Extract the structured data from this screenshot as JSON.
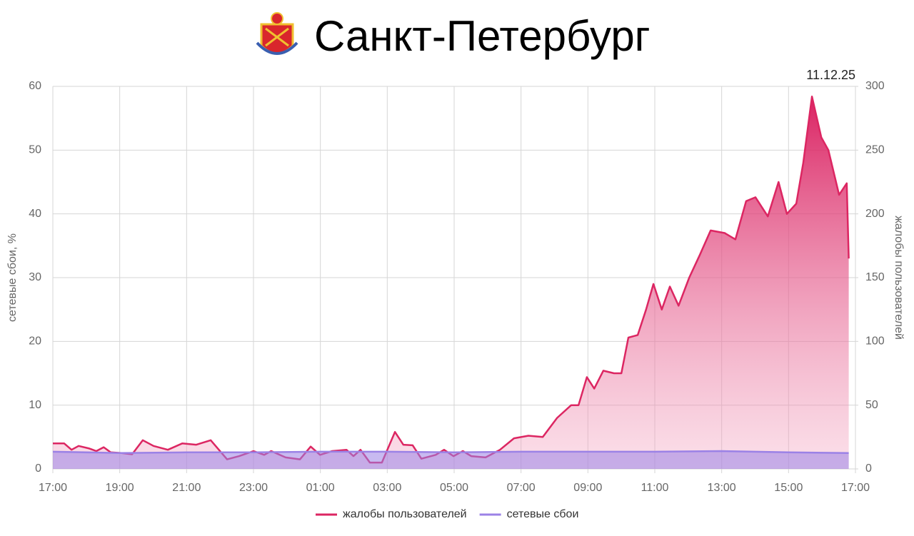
{
  "chart_data": {
    "type": "line",
    "title": "Санкт-Петербург",
    "date": "11.12.25",
    "ylabel": "сетевые сбои, %",
    "y2label": "жалобы пользователей",
    "xlim": [
      0,
      24
    ],
    "xticks": [
      {
        "value": 0,
        "label": "17:00"
      },
      {
        "value": 2,
        "label": "19:00"
      },
      {
        "value": 4,
        "label": "21:00"
      },
      {
        "value": 6,
        "label": "23:00"
      },
      {
        "value": 8,
        "label": "01:00"
      },
      {
        "value": 10,
        "label": "03:00"
      },
      {
        "value": 12,
        "label": "05:00"
      },
      {
        "value": 14,
        "label": "07:00"
      },
      {
        "value": 16,
        "label": "09:00"
      },
      {
        "value": 18,
        "label": "11:00"
      },
      {
        "value": 20,
        "label": "13:00"
      },
      {
        "value": 22,
        "label": "15:00"
      },
      {
        "value": 24,
        "label": "17:00"
      }
    ],
    "ylim": [
      0,
      60
    ],
    "yticks": [
      0,
      10,
      20,
      30,
      40,
      50,
      60
    ],
    "y2lim": [
      0,
      300
    ],
    "y2ticks": [
      0,
      50,
      100,
      150,
      200,
      250,
      300
    ],
    "grid": true,
    "series": [
      {
        "name": "жалобы пользователей",
        "color": "#dc2662",
        "axis": "y2",
        "x": [
          0,
          0.34,
          0.56,
          0.77,
          1.09,
          1.3,
          1.52,
          1.73,
          2.05,
          2.37,
          2.69,
          3.01,
          3.44,
          3.87,
          4.29,
          4.72,
          5.21,
          5.57,
          6,
          6.32,
          6.53,
          6.96,
          7.39,
          7.71,
          7.99,
          8.35,
          8.78,
          8.99,
          9.2,
          9.48,
          9.84,
          10.23,
          10.48,
          10.76,
          11.02,
          11.45,
          11.7,
          11.98,
          12.26,
          12.51,
          12.94,
          13.37,
          13.79,
          14.22,
          14.65,
          15.08,
          15.5,
          15.72,
          15.97,
          16.19,
          16.46,
          16.78,
          17,
          17.21,
          17.49,
          17.74,
          17.96,
          18.21,
          18.45,
          18.71,
          19.03,
          19.35,
          19.67,
          20.09,
          20.41,
          20.73,
          21.01,
          21.38,
          21.7,
          21.95,
          22.23,
          22.44,
          22.7,
          22.98,
          23.19,
          23.51,
          23.74,
          23.8
        ],
        "values": [
          20,
          20,
          15,
          18,
          16,
          14,
          17,
          13,
          12.5,
          11.5,
          22.5,
          18,
          15,
          20,
          19,
          22.5,
          7.5,
          10,
          14,
          11,
          14,
          9,
          7.5,
          17.5,
          11,
          14,
          15,
          10,
          15,
          5,
          5,
          29,
          19,
          18.5,
          8,
          11,
          15,
          10,
          14,
          10,
          9,
          15,
          24,
          26,
          25,
          40,
          50,
          50,
          72,
          63,
          77,
          75,
          75,
          103,
          105,
          125,
          145,
          125,
          143,
          128,
          150,
          168,
          187,
          185,
          180,
          210,
          213,
          198,
          225,
          200,
          208,
          240,
          292,
          260,
          250,
          215,
          224,
          165
        ]
      },
      {
        "name": "сетевые сбои",
        "color": "#9b82e6",
        "x": [
          0,
          2,
          4,
          6,
          8,
          10,
          12,
          14,
          16,
          18,
          20,
          22,
          23.8
        ],
        "values": [
          2.7,
          2.5,
          2.6,
          2.6,
          2.7,
          2.7,
          2.6,
          2.7,
          2.7,
          2.7,
          2.8,
          2.6,
          2.5
        ]
      }
    ]
  }
}
